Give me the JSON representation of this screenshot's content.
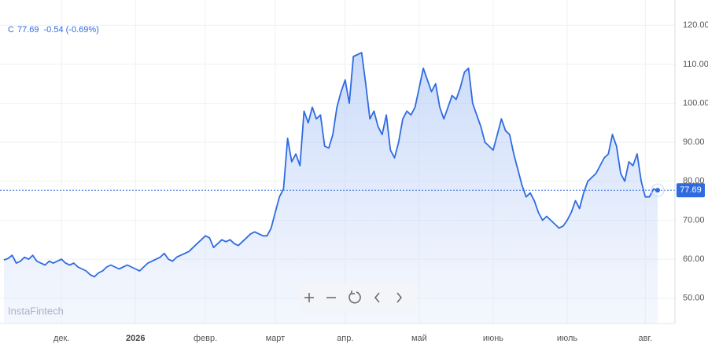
{
  "header": {
    "symbol": "C",
    "price": "77.69",
    "change": "-0.54 (-0.69%)",
    "watermark": "InstaFintech"
  },
  "chart_data": {
    "type": "line",
    "color": "#2f6be0",
    "grid": true,
    "values": [
      59.8,
      60.2,
      61,
      59,
      59.5,
      60.5,
      60,
      61,
      59.5,
      59,
      58.5,
      59.5,
      59,
      59.5,
      60,
      59,
      58.5,
      59,
      58,
      57.5,
      57,
      56,
      55.5,
      56.5,
      57,
      58,
      58.5,
      58,
      57.5,
      58,
      58.5,
      58,
      57.5,
      57,
      58,
      59,
      59.5,
      60,
      60.5,
      61.5,
      60,
      59.5,
      60.5,
      61,
      61.5,
      62,
      63,
      64,
      65,
      66,
      65.5,
      63,
      64,
      65,
      64.5,
      65,
      64,
      63.5,
      64.5,
      65.5,
      66.5,
      67,
      66.5,
      66,
      66,
      68,
      72,
      76,
      78,
      91,
      85,
      87,
      84,
      98,
      95,
      99,
      96,
      97,
      89,
      88.5,
      92,
      99,
      103,
      106,
      100,
      112,
      112.5,
      113,
      105,
      96,
      98,
      94,
      92,
      97,
      88,
      86,
      90,
      96,
      98,
      97,
      99,
      104,
      109,
      106,
      103,
      105,
      99,
      96,
      99,
      102,
      101,
      104,
      108,
      109,
      100,
      97,
      94,
      90,
      89,
      88,
      92,
      96,
      93,
      92,
      87,
      83,
      79,
      76,
      77,
      75,
      72,
      70,
      71,
      70,
      69,
      68,
      68.5,
      70,
      72,
      75,
      73,
      77,
      80,
      81,
      82,
      84,
      86,
      87,
      92,
      89,
      82,
      80,
      85,
      84,
      87,
      80,
      76,
      76,
      78,
      77.69
    ],
    "xlim": [
      0,
      159
    ],
    "xticks": [
      {
        "value": 14,
        "label": "дек."
      },
      {
        "value": 32,
        "label": "2026"
      },
      {
        "value": 49,
        "label": "февр."
      },
      {
        "value": 66,
        "label": "март"
      },
      {
        "value": 83,
        "label": "апр."
      },
      {
        "value": 101,
        "label": "май"
      },
      {
        "value": 119,
        "label": "июнь"
      },
      {
        "value": 137,
        "label": "июль"
      },
      {
        "value": 156,
        "label": "авг."
      }
    ],
    "ylim": [
      43.5,
      126.5
    ],
    "yticks": [
      {
        "value": 50,
        "label": "50.00"
      },
      {
        "value": 60,
        "label": "60.00"
      },
      {
        "value": 70,
        "label": "70.00"
      },
      {
        "value": 80,
        "label": "80.00"
      },
      {
        "value": 90,
        "label": "90.00"
      },
      {
        "value": 100,
        "label": "100.00"
      },
      {
        "value": 110,
        "label": "110.00"
      },
      {
        "value": 120,
        "label": "120.00"
      }
    ]
  }
}
